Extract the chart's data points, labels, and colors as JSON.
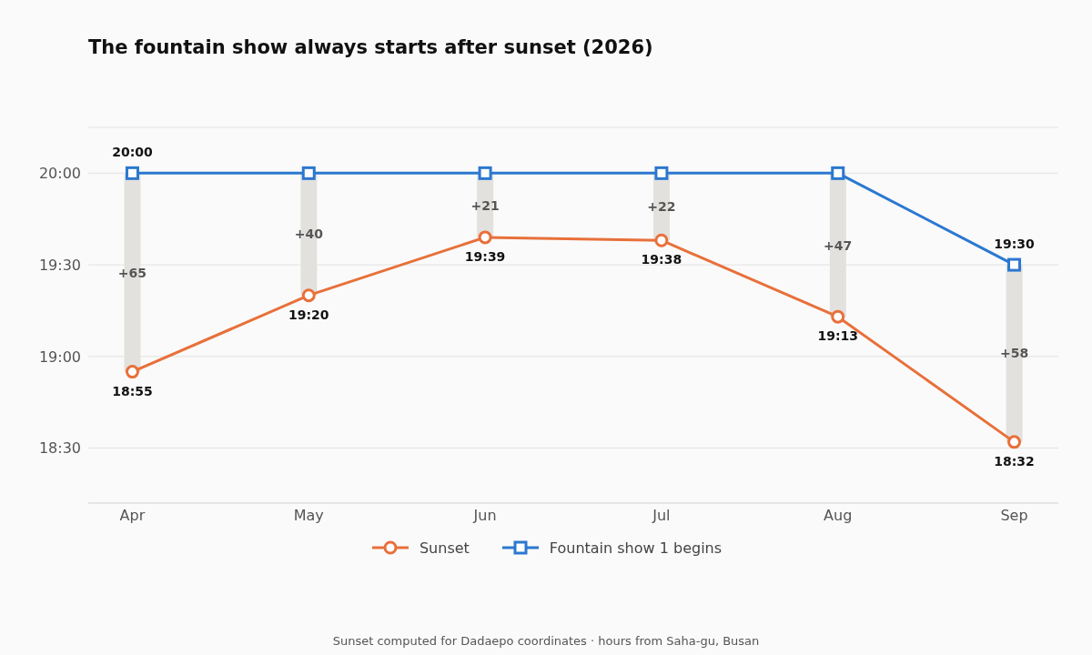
{
  "chart_data": {
    "type": "line",
    "title": "The fountain show always starts after sunset (2026)",
    "categories": [
      "Apr",
      "May",
      "Jun",
      "Jul",
      "Aug",
      "Sep"
    ],
    "series": [
      {
        "type": "bar",
        "color": "#e3e1de",
        "base": [
          18.9167,
          19.3333,
          19.65,
          19.6333,
          19.2167,
          18.5333
        ],
        "values": [
          1.08,
          0.67,
          0.35,
          0.37,
          0.78,
          0.97
        ]
      },
      {
        "name": "Sunset",
        "color": "#e8703a",
        "marker": "circle",
        "values": [
          18.9167,
          19.3333,
          19.65,
          19.6333,
          19.2167,
          18.5333
        ],
        "value_labels": [
          "18:55",
          "19:20",
          "19:39",
          "19:38",
          "19:13",
          "18:32"
        ]
      },
      {
        "name": "Fountain show 1 begins",
        "color": "#2b78d0",
        "marker": "square",
        "values": [
          20,
          20,
          20,
          20,
          20,
          19.5
        ],
        "value_labels": [
          "20:00",
          null,
          null,
          null,
          null,
          "19:30"
        ]
      }
    ],
    "ylim": [
      18.2,
      20.25
    ],
    "yticks": [
      {
        "value": 18.5,
        "label": "18:30"
      },
      {
        "value": 19,
        "label": "19:00"
      },
      {
        "value": 19.5,
        "label": "19:30"
      },
      {
        "value": 20,
        "label": "20:00"
      }
    ],
    "grid": "y",
    "legend": "bottom",
    "annotations": [
      "+65",
      "+40",
      "+21",
      "+22",
      "+47",
      "+58",
      "Sunset computed for Dadaepo coordinates · hours from Saha-gu, Busan"
    ]
  }
}
